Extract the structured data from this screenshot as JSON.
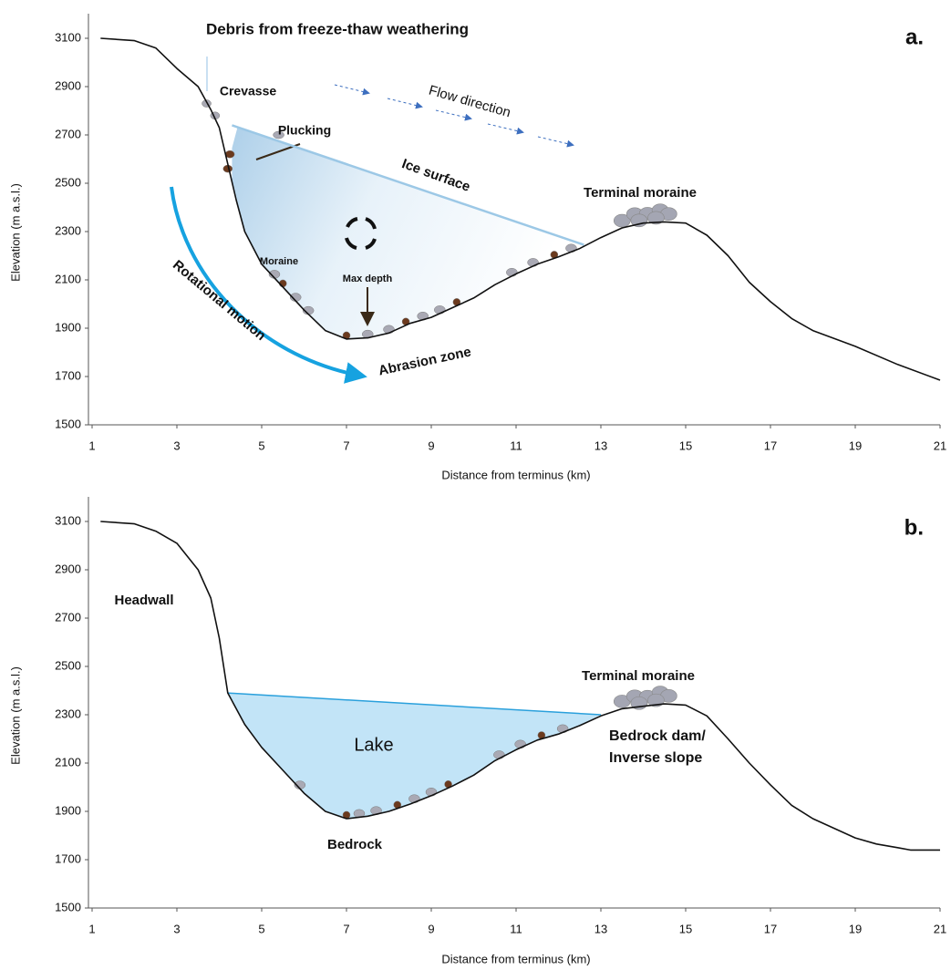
{
  "chart_data": [
    {
      "type": "line",
      "xlabel": "Distance from terminus (km)",
      "ylabel": "Elevation (m a.s.l.)",
      "xlim": [
        1,
        21
      ],
      "xticks": [
        1,
        3,
        5,
        7,
        9,
        11,
        13,
        15,
        17,
        19,
        21
      ],
      "ylim": [
        1500,
        3100
      ],
      "yticks": [
        1500,
        1700,
        1900,
        2100,
        2300,
        2500,
        2700,
        2900,
        3100
      ],
      "color": "#111111",
      "x": [
        1.2,
        2,
        2.5,
        3,
        3.5,
        3.8,
        4,
        4.2,
        4.4,
        4.6,
        5,
        5.5,
        6,
        6.5,
        7,
        7.5,
        8,
        8.5,
        9,
        9.5,
        10,
        10.5,
        11,
        11.5,
        12,
        12.5,
        13,
        13.5,
        14,
        14.5,
        15,
        15.5,
        16,
        16.5,
        17,
        17.5,
        18,
        19,
        20,
        21
      ],
      "values": [
        3100,
        3090,
        3060,
        2975,
        2900,
        2805,
        2730,
        2580,
        2430,
        2300,
        2165,
        2070,
        1975,
        1890,
        1855,
        1860,
        1880,
        1920,
        1945,
        1985,
        2025,
        2080,
        2125,
        2165,
        2195,
        2230,
        2275,
        2315,
        2335,
        2340,
        2335,
        2285,
        2200,
        2090,
        2010,
        1940,
        1890,
        1825,
        1750,
        1685
      ],
      "surface": {
        "x": [
          4.3,
          12.6
        ],
        "values": [
          2740,
          2245
        ],
        "color": "#9cc8e6"
      },
      "annotations": [
        "Debris from freeze-thaw weathering",
        "a.",
        "Crevasse",
        "Plucking",
        "Flow direction",
        "Ice surface",
        "Terminal moraine",
        "Moraine",
        "Max depth",
        "Rotational motion",
        "Abrasion zone"
      ]
    },
    {
      "type": "line",
      "xlabel": "Distance from terminus (km)",
      "ylabel": "Elevation (m a.s.l.)",
      "xlim": [
        1,
        21
      ],
      "xticks": [
        1,
        3,
        5,
        7,
        9,
        11,
        13,
        15,
        17,
        19,
        21
      ],
      "ylim": [
        1500,
        3100
      ],
      "yticks": [
        1500,
        1700,
        1900,
        2100,
        2300,
        2500,
        2700,
        2900,
        3100
      ],
      "color": "#111111",
      "x": [
        1.2,
        2,
        2.5,
        3,
        3.5,
        3.8,
        4,
        4.2,
        4.6,
        5,
        5.5,
        6,
        6.5,
        7,
        7.5,
        8,
        8.5,
        9,
        9.5,
        10,
        10.5,
        11,
        11.5,
        12,
        12.5,
        13,
        13.5,
        14,
        14.5,
        15,
        15.5,
        16,
        16.5,
        17,
        17.5,
        18,
        19,
        19.5,
        20,
        20.3,
        21
      ],
      "values": [
        3100,
        3090,
        3060,
        3010,
        2900,
        2783,
        2617,
        2390,
        2260,
        2165,
        2070,
        1975,
        1900,
        1870,
        1880,
        1900,
        1930,
        1965,
        2005,
        2050,
        2110,
        2155,
        2195,
        2220,
        2255,
        2295,
        2325,
        2335,
        2345,
        2340,
        2295,
        2200,
        2100,
        2010,
        1925,
        1870,
        1790,
        1765,
        1750,
        1740,
        1740
      ],
      "surface": {
        "x": [
          4.2,
          13.0
        ],
        "values": [
          2390,
          2300
        ],
        "color": "#2aa0dc"
      },
      "annotations": [
        "b.",
        "Headwall",
        "Terminal moraine",
        "Lake",
        "Bedrock dam/",
        "Inverse slope",
        "Bedrock"
      ]
    }
  ]
}
